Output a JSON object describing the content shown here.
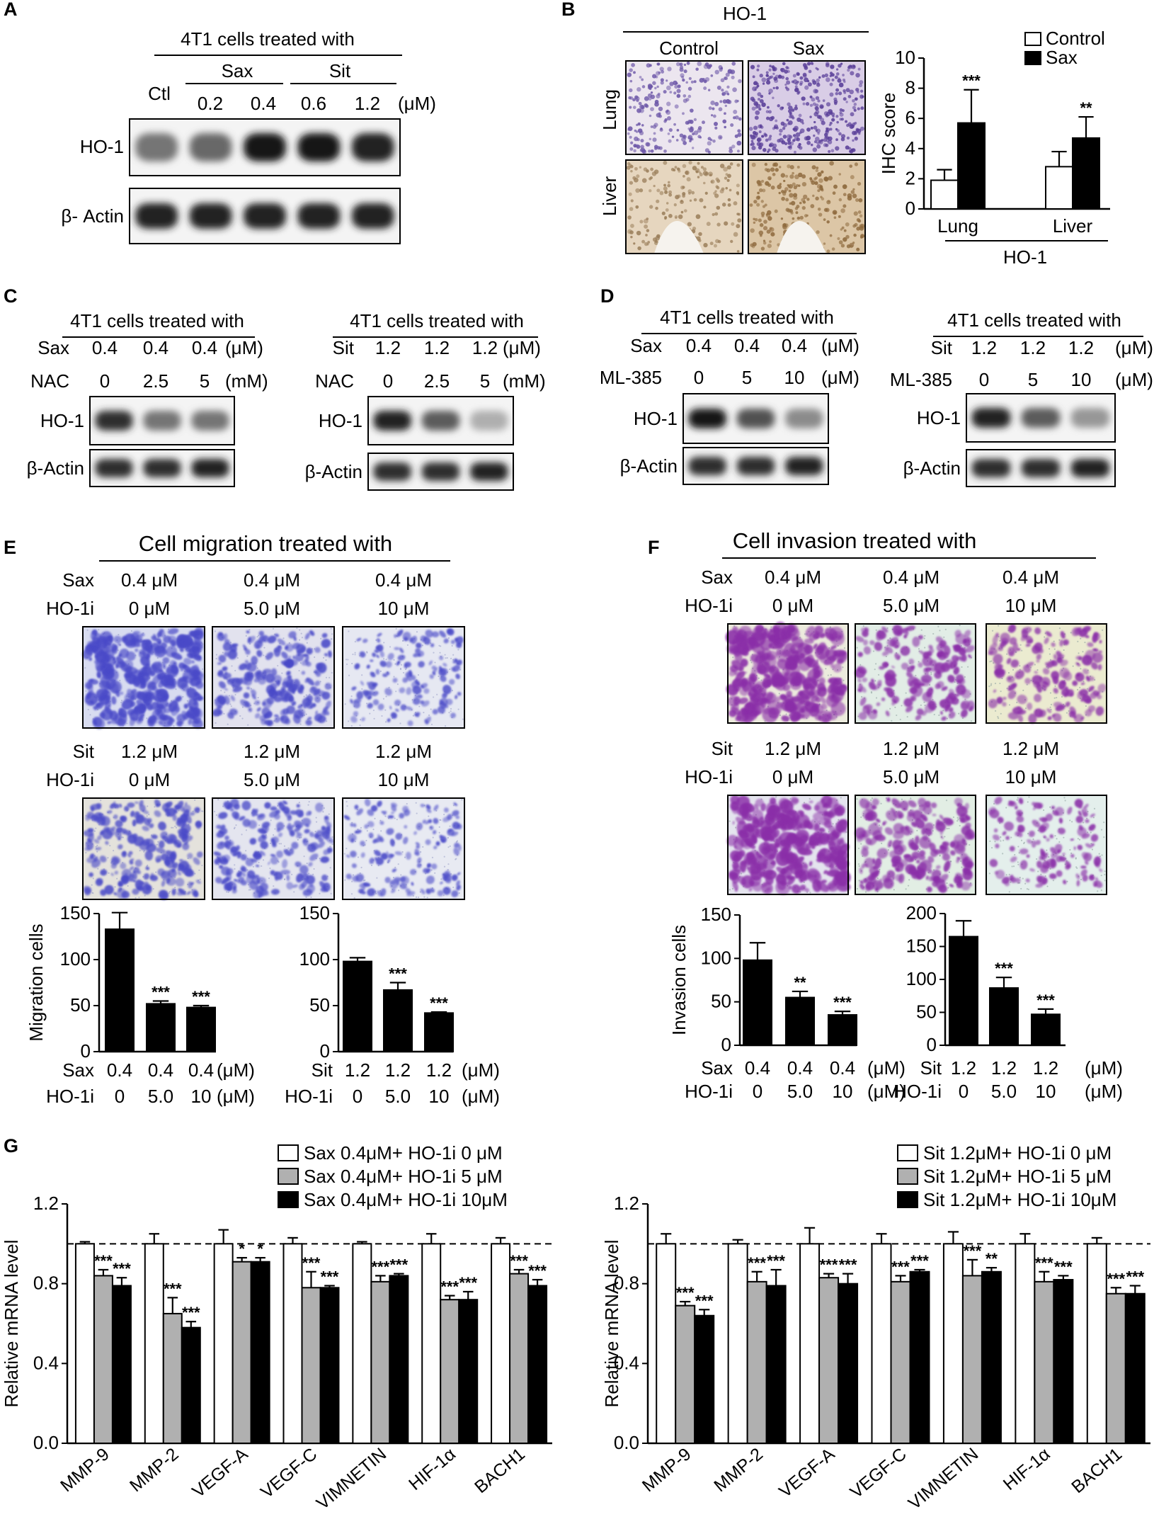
{
  "panels": {
    "A": {
      "label": "A",
      "header": "4T1 cells treated with",
      "groups": [
        "Sax",
        "Sit"
      ],
      "lanes": [
        "Ctl",
        "0.2",
        "0.4",
        "0.6",
        "1.2"
      ],
      "unit": "(μM)",
      "rows": [
        "HO-1",
        "β- Actin"
      ],
      "ho1_intensity": [
        0.55,
        0.6,
        0.95,
        0.95,
        0.9
      ],
      "actin_intensity": [
        0.9,
        0.9,
        0.9,
        0.9,
        0.9
      ]
    },
    "B": {
      "label": "B",
      "header": "HO-1",
      "columns": [
        "Control",
        "Sax"
      ],
      "rows": [
        "Lung",
        "Liver"
      ],
      "xgroup_label": "HO-1"
    },
    "C": {
      "label": "C",
      "header": "4T1 cells treated with",
      "blot1": {
        "drug": "Sax",
        "drug_vals": [
          "0.4",
          "0.4",
          "0.4"
        ],
        "drug_unit": "(μM)",
        "agent": "NAC",
        "agent_vals": [
          "0",
          "2.5",
          "5"
        ],
        "agent_unit": "(mM)",
        "rows": [
          "HO-1",
          "β-Actin"
        ],
        "ho1_intensity": [
          0.85,
          0.55,
          0.55
        ]
      },
      "blot2": {
        "drug": "Sit",
        "drug_vals": [
          "1.2",
          "1.2",
          "1.2"
        ],
        "drug_unit": "(μM)",
        "agent": "NAC",
        "agent_vals": [
          "0",
          "2.5",
          "5"
        ],
        "agent_unit": "(mM)",
        "rows": [
          "HO-1",
          "β-Actin"
        ],
        "ho1_intensity": [
          0.9,
          0.65,
          0.3
        ]
      }
    },
    "D": {
      "label": "D",
      "header": "4T1 cells treated with",
      "blot1": {
        "drug": "Sax",
        "drug_vals": [
          "0.4",
          "0.4",
          "0.4"
        ],
        "drug_unit": "(μM)",
        "agent": "ML-385",
        "agent_vals": [
          "0",
          "5",
          "10"
        ],
        "agent_unit": "(μM)",
        "rows": [
          "HO-1",
          "β-Actin"
        ],
        "ho1_intensity": [
          0.95,
          0.7,
          0.45
        ]
      },
      "blot2": {
        "drug": "Sit",
        "drug_vals": [
          "1.2",
          "1.2",
          "1.2"
        ],
        "drug_unit": "(μM)",
        "agent": "ML-385",
        "agent_vals": [
          "0",
          "5",
          "10"
        ],
        "agent_unit": "(μM)",
        "rows": [
          "HO-1",
          "β-Actin"
        ],
        "ho1_intensity": [
          0.9,
          0.65,
          0.4
        ]
      }
    },
    "E": {
      "label": "E",
      "header": "Cell migration treated with",
      "row1": {
        "drug": "Sax",
        "drug_vals": [
          "0.4 μM",
          "0.4 μM",
          "0.4 μM"
        ],
        "inh": "HO-1i",
        "inh_vals": [
          "0 μM",
          "5.0 μM",
          "10 μM"
        ]
      },
      "row2": {
        "drug": "Sit",
        "drug_vals": [
          "1.2 μM",
          "1.2 μM",
          "1.2 μM"
        ],
        "inh": "HO-1i",
        "inh_vals": [
          "0 μM",
          "5.0 μM",
          "10 μM"
        ]
      },
      "unit": "(μM)",
      "density1": [
        0.95,
        0.55,
        0.35
      ],
      "density2": [
        0.6,
        0.5,
        0.35
      ]
    },
    "F": {
      "label": "F",
      "header": "Cell invasion treated with",
      "row1": {
        "drug": "Sax",
        "drug_vals": [
          "0.4 μM",
          "0.4 μM",
          "0.4 μM"
        ],
        "inh": "HO-1i",
        "inh_vals": [
          "0 μM",
          "5.0 μM",
          "10 μM"
        ]
      },
      "row2": {
        "drug": "Sit",
        "drug_vals": [
          "1.2 μM",
          "1.2 μM",
          "1.2 μM"
        ],
        "inh": "HO-1i",
        "inh_vals": [
          "0 μM",
          "5.0 μM",
          "10 μM"
        ]
      },
      "unit": "(μM)",
      "density1": [
        0.95,
        0.5,
        0.45
      ],
      "density2": [
        0.95,
        0.6,
        0.35
      ]
    },
    "G": {
      "label": "G"
    }
  },
  "chart_data": [
    {
      "id": "B-ihc",
      "type": "bar",
      "title": "",
      "xlabel": "HO-1",
      "ylabel": "IHC score",
      "ylim": [
        0,
        10
      ],
      "yticks": [
        0,
        2,
        4,
        6,
        8,
        10
      ],
      "categories": [
        "Lung",
        "Liver"
      ],
      "series": [
        {
          "name": "Control",
          "values": [
            1.9,
            2.8
          ],
          "errors": [
            0.7,
            1.0
          ],
          "color": "#ffffff"
        },
        {
          "name": "Sax",
          "values": [
            5.7,
            4.7
          ],
          "errors": [
            2.2,
            1.4
          ],
          "color": "#000000"
        }
      ],
      "significance": [
        [
          "",
          "***"
        ],
        [
          "",
          "**"
        ]
      ],
      "legend": "top-right"
    },
    {
      "id": "E-sax",
      "type": "bar",
      "ylabel": "Migration cells",
      "ylim": [
        0,
        150
      ],
      "yticks": [
        0,
        50,
        100,
        150
      ],
      "row1_label": "Sax",
      "row1": [
        "0.4",
        "0.4",
        "0.4"
      ],
      "row2_label": "HO-1i",
      "row2": [
        "0",
        "5.0",
        "10"
      ],
      "values": [
        133,
        52,
        48
      ],
      "errors": [
        18,
        3,
        2
      ],
      "significance": [
        "",
        "***",
        "***"
      ]
    },
    {
      "id": "E-sit",
      "type": "bar",
      "ylabel": "",
      "ylim": [
        0,
        150
      ],
      "yticks": [
        0,
        50,
        100,
        150
      ],
      "row1_label": "Sit",
      "row1": [
        "1.2",
        "1.2",
        "1.2"
      ],
      "row2_label": "HO-1i",
      "row2": [
        "0",
        "5.0",
        "10"
      ],
      "values": [
        98,
        67,
        42
      ],
      "errors": [
        4,
        8,
        1
      ],
      "significance": [
        "",
        "***",
        "***"
      ]
    },
    {
      "id": "F-sax",
      "type": "bar",
      "ylabel": "Invasion cells",
      "ylim": [
        0,
        150
      ],
      "yticks": [
        0,
        50,
        100,
        150
      ],
      "row1_label": "Sax",
      "row1": [
        "0.4",
        "0.4",
        "0.4"
      ],
      "row2_label": "HO-1i",
      "row2": [
        "0",
        "5.0",
        "10"
      ],
      "values": [
        98,
        55,
        35
      ],
      "errors": [
        20,
        7,
        4
      ],
      "significance": [
        "",
        "**",
        "***"
      ]
    },
    {
      "id": "F-sit",
      "type": "bar",
      "ylabel": "",
      "ylim": [
        0,
        200
      ],
      "yticks": [
        0,
        50,
        100,
        150,
        200
      ],
      "row1_label": "Sit",
      "row1": [
        "1.2",
        "1.2",
        "1.2"
      ],
      "row2_label": "HO-1i",
      "row2": [
        "0",
        "5.0",
        "10"
      ],
      "values": [
        165,
        87,
        47
      ],
      "errors": [
        24,
        16,
        8
      ],
      "significance": [
        "",
        "***",
        "***"
      ]
    },
    {
      "id": "G-sax",
      "type": "bar",
      "ylabel": "Relative mRNA level",
      "ylim": [
        0,
        1.2
      ],
      "yticks": [
        0.0,
        0.4,
        0.8,
        1.2
      ],
      "ytick_labels": [
        "0.0",
        "0.4",
        "0.8",
        "1.2"
      ],
      "reference_line": 1.0,
      "categories": [
        "MMP-9",
        "MMP-2",
        "VEGF-A",
        "VEGF-C",
        "VIMNETIN",
        "HIF-1α",
        "BACH1"
      ],
      "series": [
        {
          "name": "Sax 0.4μM+ HO-1i 0 μM",
          "values": [
            1.0,
            1.0,
            1.0,
            1.0,
            1.0,
            1.0,
            1.0
          ],
          "errors": [
            0.01,
            0.05,
            0.07,
            0.03,
            0.01,
            0.05,
            0.03
          ],
          "color": "#ffffff"
        },
        {
          "name": "Sax 0.4μM+ HO-1i 5 μM",
          "values": [
            0.84,
            0.65,
            0.91,
            0.78,
            0.81,
            0.72,
            0.85
          ],
          "errors": [
            0.03,
            0.08,
            0.02,
            0.08,
            0.03,
            0.02,
            0.02
          ],
          "color": "#b0b0b0"
        },
        {
          "name": "Sax 0.4μM+ HO-1i 10μM",
          "values": [
            0.79,
            0.58,
            0.91,
            0.78,
            0.84,
            0.72,
            0.79
          ],
          "errors": [
            0.04,
            0.03,
            0.02,
            0.01,
            0.01,
            0.04,
            0.03
          ],
          "color": "#000000"
        }
      ],
      "significance": [
        [
          "",
          "***",
          "***"
        ],
        [
          "",
          "***",
          "***"
        ],
        [
          "",
          "*",
          "*"
        ],
        [
          "",
          "***",
          "***"
        ],
        [
          "",
          "***",
          "***"
        ],
        [
          "",
          "***",
          "***"
        ],
        [
          "",
          "***",
          "***"
        ]
      ],
      "legend": "top-right"
    },
    {
      "id": "G-sit",
      "type": "bar",
      "ylabel": "Relative mRNA level",
      "ylim": [
        0,
        1.2
      ],
      "yticks": [
        0.0,
        0.4,
        0.8,
        1.2
      ],
      "ytick_labels": [
        "0.0",
        "0.4",
        "0.8",
        "1.2"
      ],
      "reference_line": 1.0,
      "categories": [
        "MMP-9",
        "MMP-2",
        "VEGF-A",
        "VEGF-C",
        "VIMNETIN",
        "HIF-1α",
        "BACH1"
      ],
      "series": [
        {
          "name": "Sit 1.2μM+ HO-1i 0 μM",
          "values": [
            1.0,
            1.0,
            1.0,
            1.0,
            1.0,
            1.0,
            1.0
          ],
          "errors": [
            0.05,
            0.02,
            0.08,
            0.05,
            0.06,
            0.05,
            0.03
          ],
          "color": "#ffffff"
        },
        {
          "name": "Sit 1.2μM+ HO-1i 5 μM",
          "values": [
            0.69,
            0.81,
            0.83,
            0.81,
            0.84,
            0.81,
            0.75
          ],
          "errors": [
            0.02,
            0.05,
            0.02,
            0.03,
            0.08,
            0.05,
            0.03
          ],
          "color": "#b0b0b0"
        },
        {
          "name": "Sit 1.2μM+ HO-1i 10μM",
          "values": [
            0.64,
            0.79,
            0.8,
            0.86,
            0.86,
            0.82,
            0.75
          ],
          "errors": [
            0.03,
            0.08,
            0.05,
            0.01,
            0.02,
            0.02,
            0.04
          ],
          "color": "#000000"
        }
      ],
      "significance": [
        [
          "",
          "***",
          "***"
        ],
        [
          "",
          "***",
          "***"
        ],
        [
          "",
          "***",
          "***"
        ],
        [
          "",
          "***",
          "***"
        ],
        [
          "",
          "***",
          "**"
        ],
        [
          "",
          "***",
          "***"
        ],
        [
          "",
          "***",
          "***"
        ]
      ],
      "legend": "top-right"
    }
  ]
}
